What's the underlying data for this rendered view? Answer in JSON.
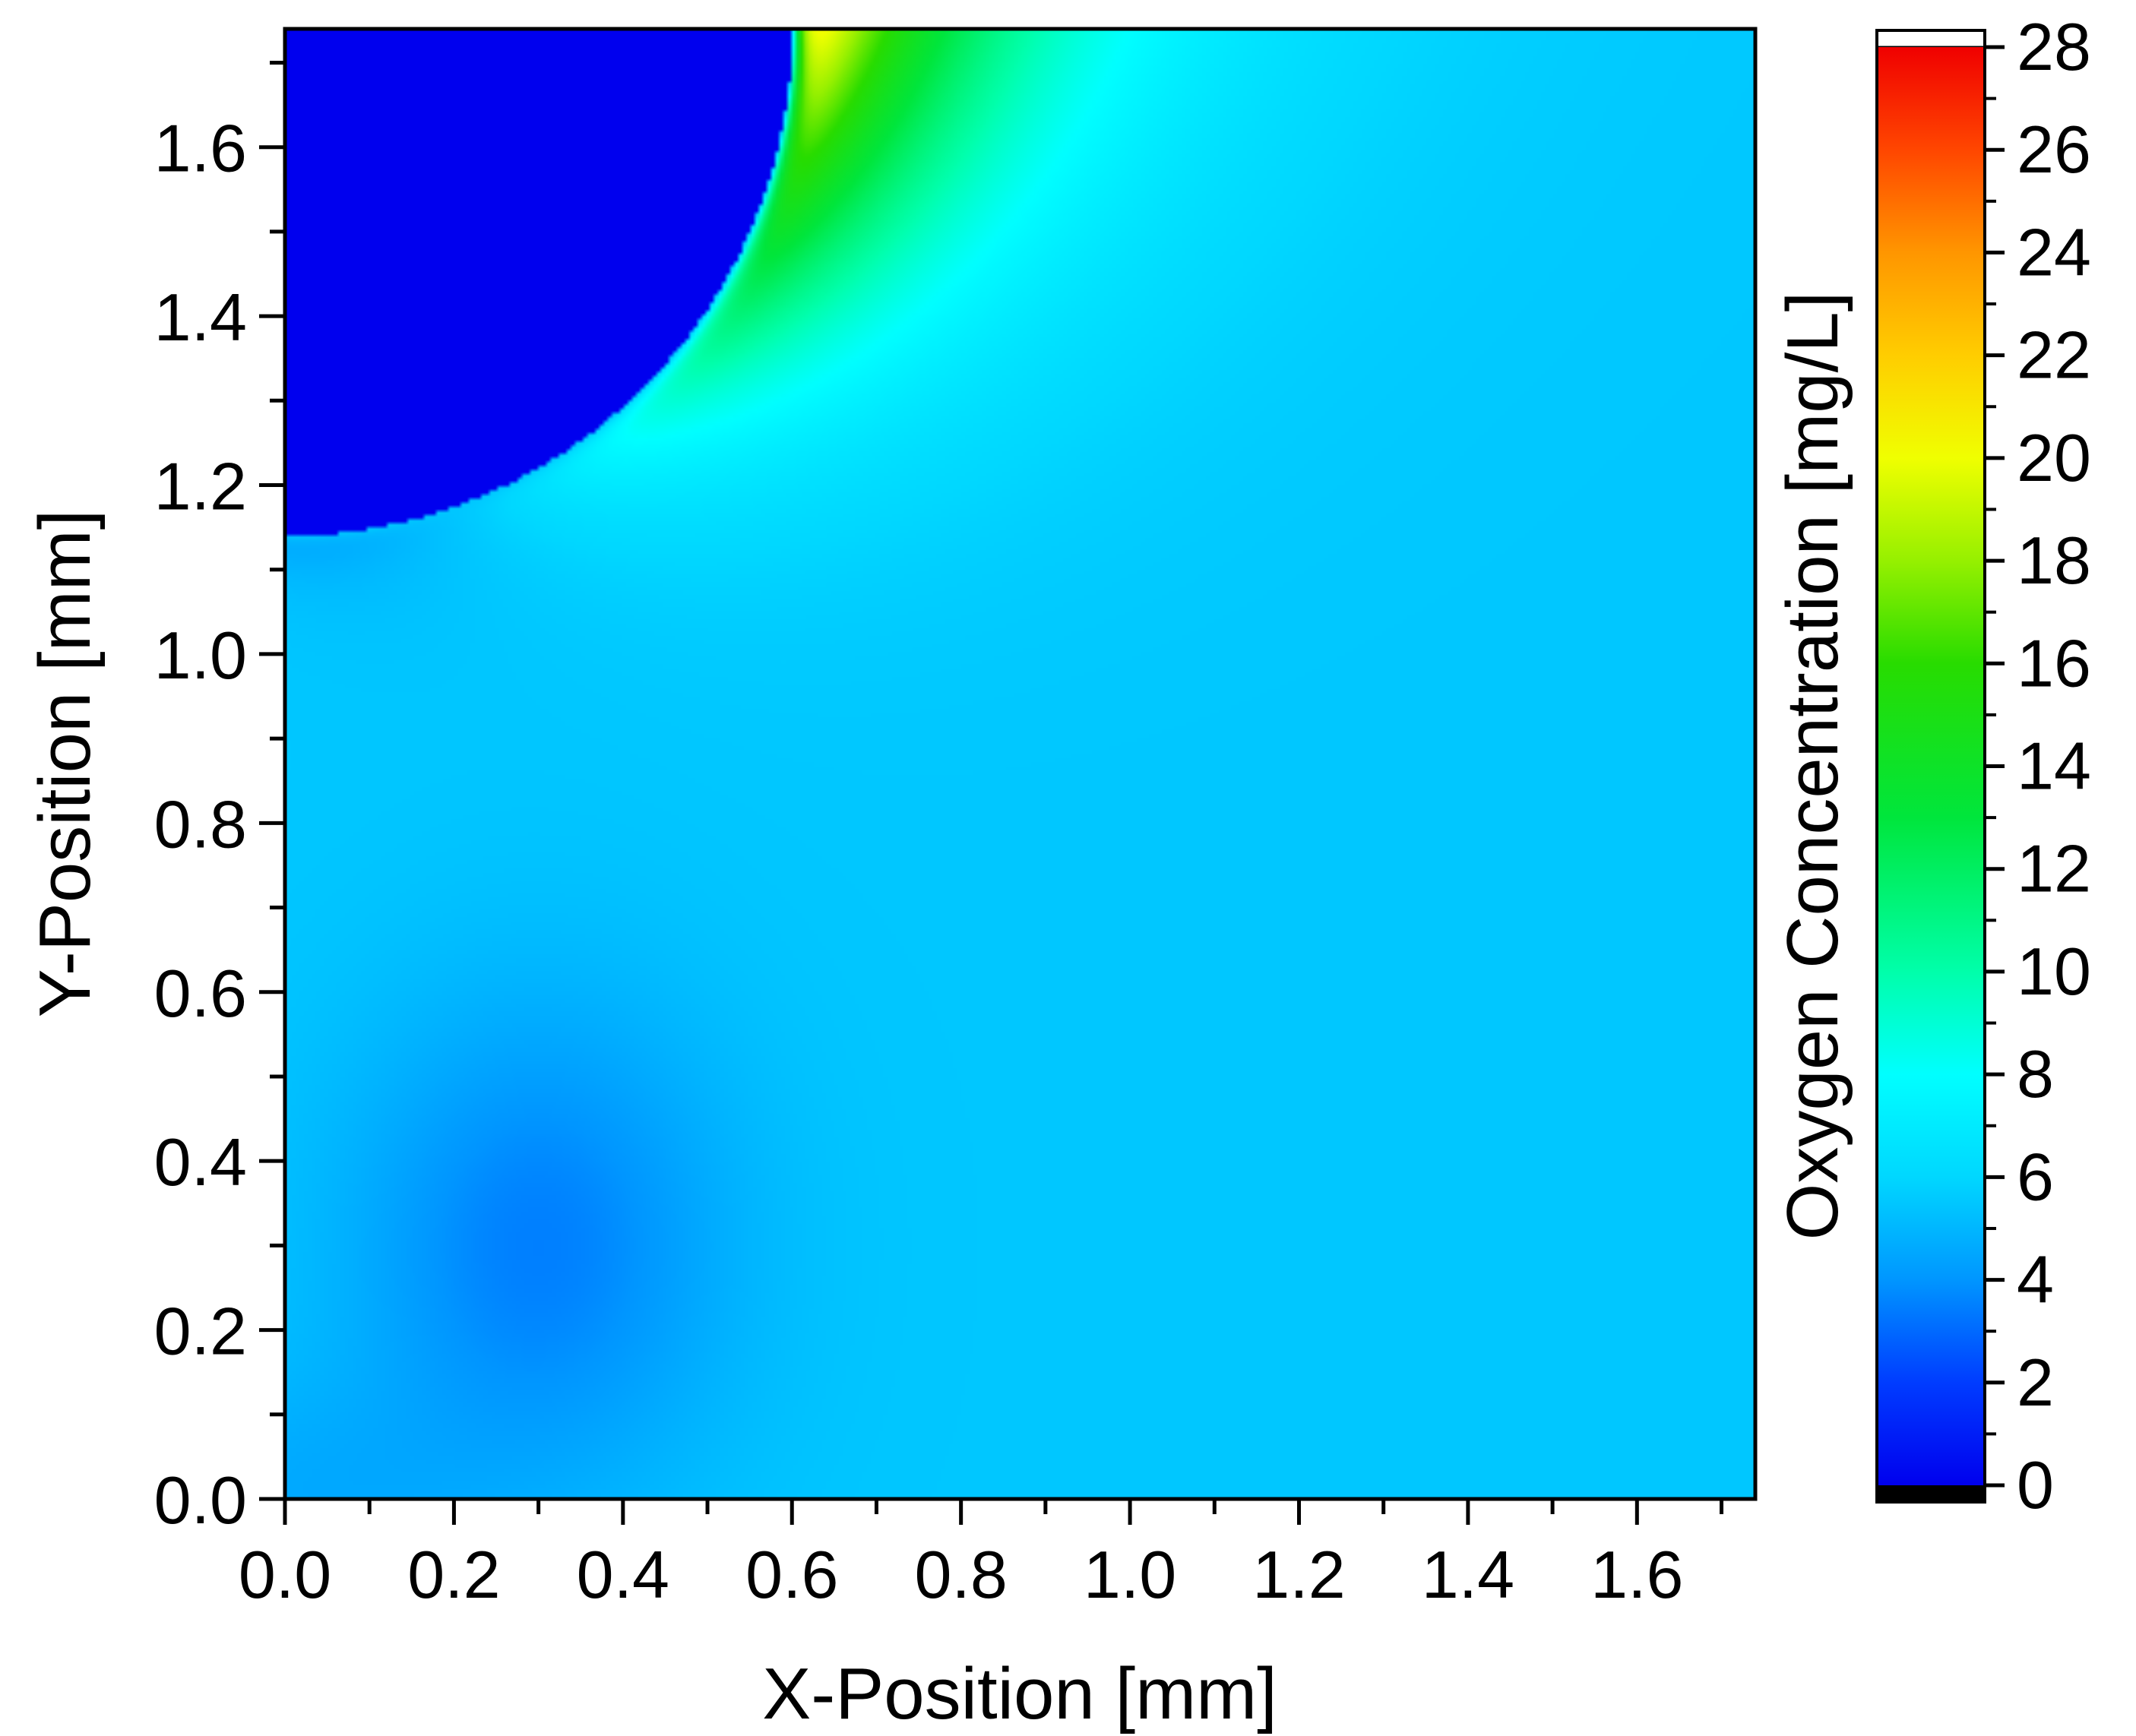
{
  "chart_data": {
    "type": "heatmap",
    "title": "",
    "xlabel": "X-Position [mm]",
    "ylabel": "Y-Position [mm]",
    "xlim": [
      0.0,
      1.74
    ],
    "ylim": [
      0.0,
      1.74
    ],
    "xticks": [
      "0.0",
      "0.2",
      "0.4",
      "0.6",
      "0.8",
      "1.0",
      "1.2",
      "1.4",
      "1.6"
    ],
    "yticks": [
      "0.0",
      "0.2",
      "0.4",
      "0.6",
      "0.8",
      "1.0",
      "1.2",
      "1.4",
      "1.6"
    ],
    "colorbar": {
      "label": "Oxygen Concentration [mg/L]",
      "min": 0,
      "max": 28,
      "ticks": [
        "0",
        "2",
        "4",
        "6",
        "8",
        "10",
        "12",
        "14",
        "16",
        "18",
        "20",
        "22",
        "24",
        "26",
        "28"
      ],
      "colormap": "rainbow",
      "under_color": "#000000",
      "over_color": "#ffffff"
    },
    "features": {
      "bubble": {
        "center_x_mm": 0.0,
        "center_y_mm": 1.74,
        "radius_mm": 0.6,
        "value": 0
      },
      "peak_value": 24,
      "peak_location_mm": [
        0.67,
        1.68
      ],
      "background_value": 5.5,
      "low_region_value": 3.5
    }
  }
}
